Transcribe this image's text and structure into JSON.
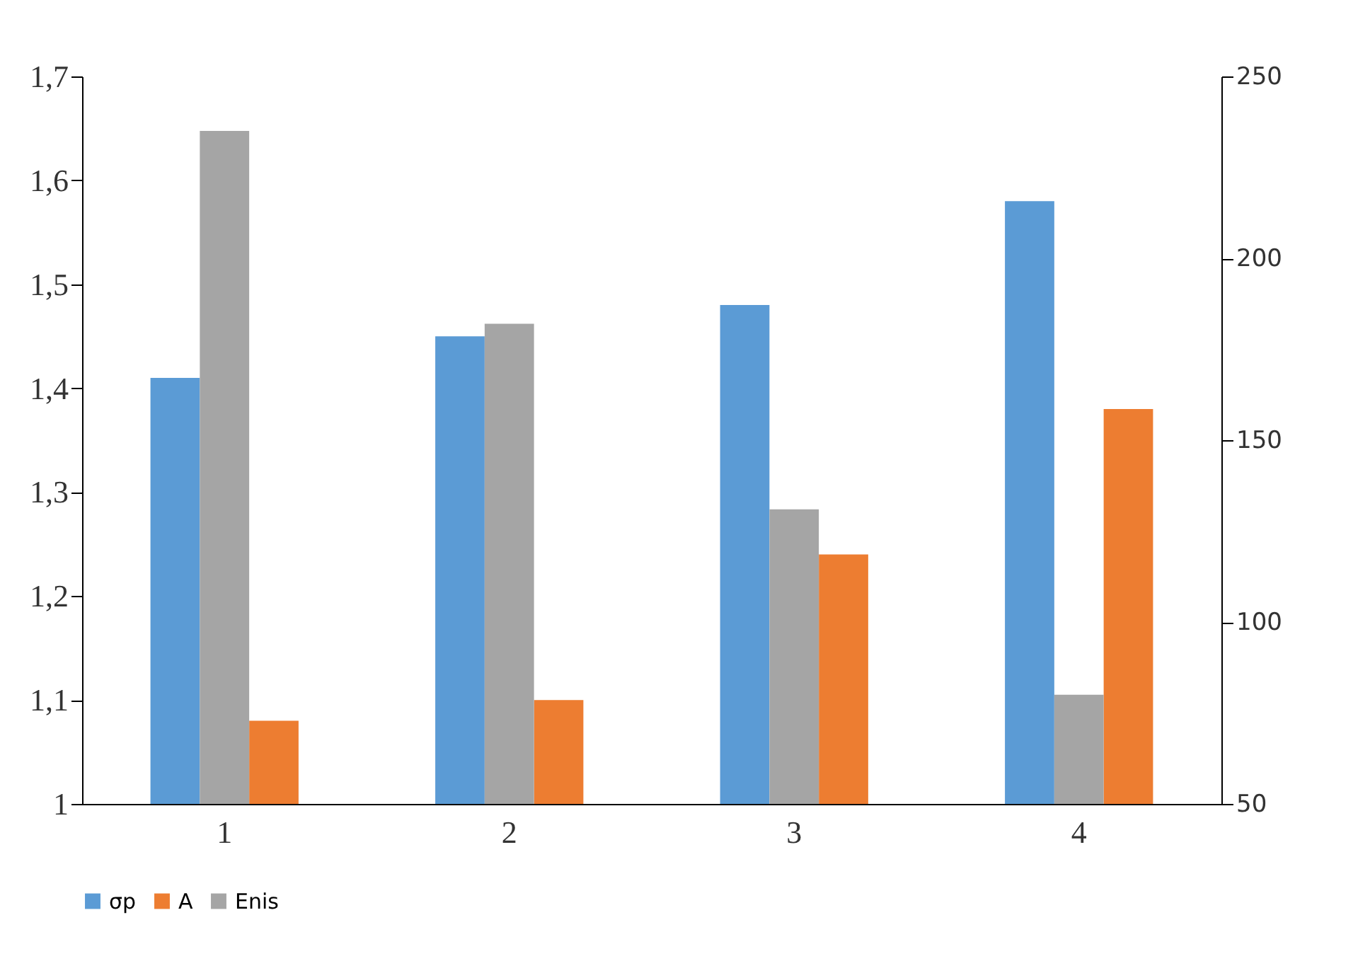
{
  "chart_data": {
    "type": "bar",
    "categories": [
      "1",
      "2",
      "3",
      "4"
    ],
    "series": [
      {
        "name": "σp",
        "color": "#5b9bd5",
        "values": [
          1.41,
          1.45,
          1.48,
          1.58
        ]
      },
      {
        "name": "Enis",
        "color": "#a5a5a5",
        "values": [
          235,
          182,
          131,
          80
        ],
        "axis": "y2"
      },
      {
        "name": "A",
        "color": "#ed7d31",
        "values": [
          1.08,
          1.1,
          1.24,
          1.38
        ]
      }
    ],
    "ylim": [
      1,
      1.7
    ],
    "yticks": [
      {
        "value": 1,
        "label": "1"
      },
      {
        "value": 1.1,
        "label": "1,1"
      },
      {
        "value": 1.2,
        "label": "1,2"
      },
      {
        "value": 1.3,
        "label": "1,3"
      },
      {
        "value": 1.4,
        "label": "1,4"
      },
      {
        "value": 1.5,
        "label": "1,5"
      },
      {
        "value": 1.6,
        "label": "1,6"
      },
      {
        "value": 1.7,
        "label": "1,7"
      }
    ],
    "y2lim": [
      50,
      250
    ],
    "y2ticks": [
      50,
      100,
      150,
      200,
      250
    ],
    "grid": false,
    "legend": "bottom"
  }
}
